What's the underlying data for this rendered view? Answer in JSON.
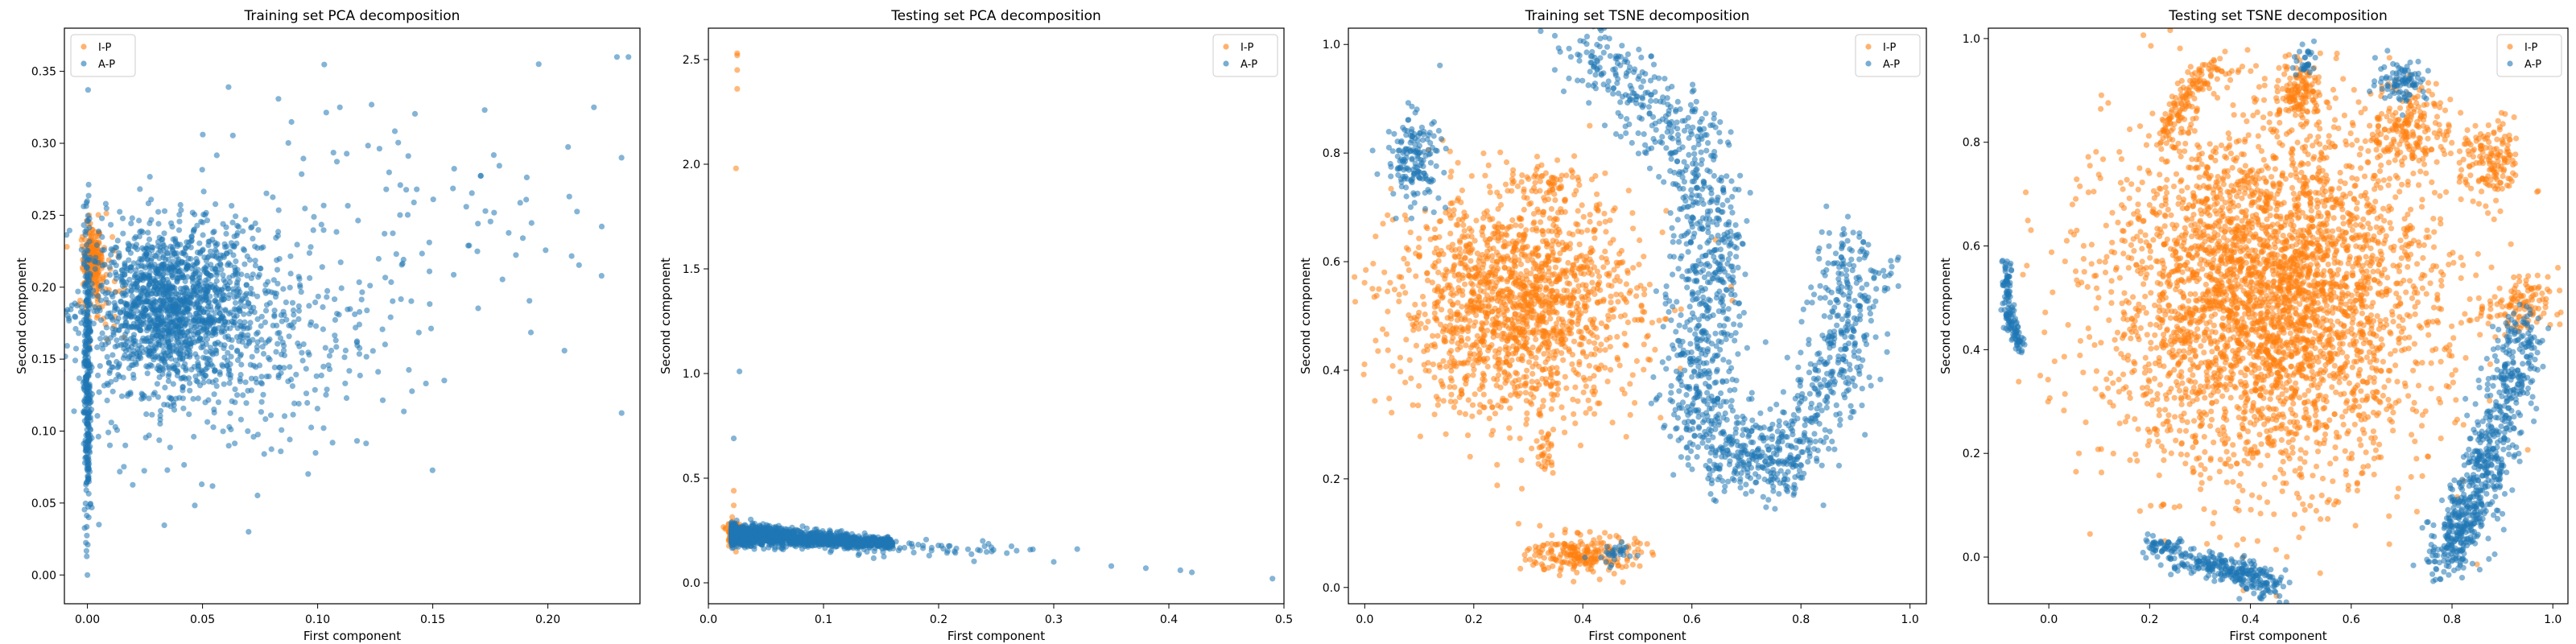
{
  "colors": {
    "ip": "#ff7f0e",
    "ap": "#1f77b4"
  },
  "chart_data": [
    {
      "type": "scatter",
      "title": "Training set PCA decomposition",
      "xlabel": "First component",
      "ylabel": "Second component",
      "xlim": [
        -0.01,
        0.24
      ],
      "ylim": [
        -0.02,
        0.38
      ],
      "xticks": [
        "0.00",
        "0.05",
        "0.10",
        "0.15",
        "0.20"
      ],
      "xtick_values": [
        0.0,
        0.05,
        0.1,
        0.15,
        0.2
      ],
      "yticks": [
        "0.00",
        "0.05",
        "0.10",
        "0.15",
        "0.20",
        "0.25",
        "0.30",
        "0.35"
      ],
      "ytick_values": [
        0.0,
        0.05,
        0.1,
        0.15,
        0.2,
        0.25,
        0.3,
        0.35
      ],
      "legend": "top-left",
      "series": [
        {
          "name": "I-P",
          "color": "#ff7f0e",
          "clusters": [
            {
              "cx": 0.002,
              "cy": 0.22,
              "sx": 0.002,
              "sy": 0.012,
              "n": 150
            },
            {
              "cx": 0.005,
              "cy": 0.205,
              "sx": 0.004,
              "sy": 0.02,
              "n": 80
            }
          ]
        },
        {
          "name": "A-P",
          "color": "#1f77b4",
          "clusters": [
            {
              "cx": 0.035,
              "cy": 0.185,
              "sx": 0.018,
              "sy": 0.028,
              "n": 1400
            },
            {
              "cx": 0.065,
              "cy": 0.17,
              "sx": 0.03,
              "sy": 0.045,
              "n": 450
            },
            {
              "cx": 0.13,
              "cy": 0.24,
              "sx": 0.045,
              "sy": 0.05,
              "n": 120
            },
            {
              "cx": 0.0,
              "cy": 0.14,
              "sx": 0.0008,
              "sy": 0.055,
              "n": 320
            }
          ],
          "points": [
            [
              0.23,
              0.36
            ],
            [
              0.235,
              0.36
            ],
            [
              0.22,
              0.325
            ],
            [
              0.232,
              0.29
            ],
            [
              0.0,
              0.0
            ],
            [
              0.005,
              0.035
            ],
            [
              0.07,
              0.03
            ],
            [
              0.196,
              0.355
            ]
          ]
        }
      ]
    },
    {
      "type": "scatter",
      "title": "Testing set PCA decomposition",
      "xlabel": "First component",
      "ylabel": "Second component",
      "xlim": [
        0.0,
        0.5
      ],
      "ylim": [
        -0.1,
        2.65
      ],
      "xticks": [
        "0.0",
        "0.1",
        "0.2",
        "0.3",
        "0.4",
        "0.5"
      ],
      "xtick_values": [
        0.0,
        0.1,
        0.2,
        0.3,
        0.4,
        0.5
      ],
      "yticks": [
        "0.0",
        "0.5",
        "1.0",
        "1.5",
        "2.0",
        "2.5"
      ],
      "ytick_values": [
        0.0,
        0.5,
        1.0,
        1.5,
        2.0,
        2.5
      ],
      "legend": "top-right",
      "series": [
        {
          "name": "I-P",
          "color": "#ff7f0e",
          "clusters": [
            {
              "cx": 0.022,
              "cy": 0.24,
              "sx": 0.003,
              "sy": 0.03,
              "n": 120
            }
          ],
          "points": [
            [
              0.025,
              2.53
            ],
            [
              0.025,
              2.52
            ],
            [
              0.025,
              2.45
            ],
            [
              0.025,
              2.36
            ],
            [
              0.024,
              1.98
            ],
            [
              0.022,
              0.44
            ],
            [
              0.022,
              0.37
            ]
          ]
        },
        {
          "name": "A-P",
          "color": "#1f77b4",
          "band": {
            "x0": 0.02,
            "x1": 0.16,
            "y0": 0.23,
            "y1": 0.19,
            "jitter": 0.025,
            "n": 1600
          },
          "clusters": [
            {
              "cx": 0.2,
              "cy": 0.165,
              "sx": 0.05,
              "sy": 0.02,
              "n": 60
            }
          ],
          "points": [
            [
              0.027,
              1.01
            ],
            [
              0.022,
              0.69
            ],
            [
              0.3,
              0.1
            ],
            [
              0.35,
              0.08
            ],
            [
              0.38,
              0.07
            ],
            [
              0.41,
              0.06
            ],
            [
              0.42,
              0.05
            ],
            [
              0.49,
              0.02
            ]
          ]
        }
      ]
    },
    {
      "type": "scatter",
      "title": "Training set TSNE decomposition",
      "xlabel": "First component",
      "ylabel": "Second component",
      "xlim": [
        -0.03,
        1.03
      ],
      "ylim": [
        -0.03,
        1.03
      ],
      "xticks": [
        "0.0",
        "0.2",
        "0.4",
        "0.6",
        "0.8",
        "1.0"
      ],
      "xtick_values": [
        0.0,
        0.2,
        0.4,
        0.6,
        0.8,
        1.0
      ],
      "yticks": [
        "0.0",
        "0.2",
        "0.4",
        "0.6",
        "0.8",
        "1.0"
      ],
      "ytick_values": [
        0.0,
        0.2,
        0.4,
        0.6,
        0.8,
        1.0
      ],
      "legend": "top-right",
      "series": [
        {
          "name": "I-P",
          "color": "#ff7f0e",
          "clusters": [
            {
              "cx": 0.28,
              "cy": 0.52,
              "sx": 0.11,
              "sy": 0.1,
              "n": 1600
            },
            {
              "cx": 0.4,
              "cy": 0.06,
              "sx": 0.05,
              "sy": 0.018,
              "n": 220
            },
            {
              "cx": 0.34,
              "cy": 0.74,
              "sx": 0.03,
              "sy": 0.02,
              "n": 60
            },
            {
              "cx": 0.33,
              "cy": 0.25,
              "sx": 0.01,
              "sy": 0.03,
              "n": 30
            }
          ]
        },
        {
          "name": "A-P",
          "color": "#1f77b4",
          "clusters": [
            {
              "cx": 0.09,
              "cy": 0.79,
              "sx": 0.025,
              "sy": 0.04,
              "n": 160
            },
            {
              "cx": 0.46,
              "cy": 0.06,
              "sx": 0.02,
              "sy": 0.012,
              "n": 30
            }
          ],
          "curves": [
            {
              "pts": [
                [
                  0.39,
                  1.0
                ],
                [
                  0.6,
                  0.82
                ],
                [
                  0.64,
                  0.62
                ],
                [
                  0.6,
                  0.4
                ],
                [
                  0.65,
                  0.25
                ],
                [
                  0.77,
                  0.22
                ],
                [
                  0.87,
                  0.42
                ],
                [
                  0.9,
                  0.63
                ]
              ],
              "jitter": 0.035,
              "n": 1500
            }
          ]
        }
      ]
    },
    {
      "type": "scatter",
      "title": "Testing set TSNE decomposition",
      "xlabel": "First component",
      "ylabel": "Second component",
      "xlim": [
        -0.12,
        1.03
      ],
      "ylim": [
        -0.09,
        1.02
      ],
      "xticks": [
        "0.0",
        "0.2",
        "0.4",
        "0.6",
        "0.8",
        "1.0"
      ],
      "xtick_values": [
        0.0,
        0.2,
        0.4,
        0.6,
        0.8,
        1.0
      ],
      "yticks": [
        "0.0",
        "0.2",
        "0.4",
        "0.6",
        "0.8",
        "1.0"
      ],
      "ytick_values": [
        0.0,
        0.2,
        0.4,
        0.6,
        0.8,
        1.0
      ],
      "legend": "top-right",
      "series": [
        {
          "name": "I-P",
          "color": "#ff7f0e",
          "clusters": [
            {
              "cx": 0.44,
              "cy": 0.5,
              "sx": 0.16,
              "sy": 0.17,
              "n": 3600
            },
            {
              "cx": 0.5,
              "cy": 0.9,
              "sx": 0.02,
              "sy": 0.03,
              "n": 120
            },
            {
              "cx": 0.72,
              "cy": 0.83,
              "sx": 0.04,
              "sy": 0.04,
              "n": 180
            },
            {
              "cx": 0.88,
              "cy": 0.76,
              "sx": 0.03,
              "sy": 0.04,
              "n": 150
            },
            {
              "cx": 0.93,
              "cy": 0.48,
              "sx": 0.03,
              "sy": 0.03,
              "n": 110
            }
          ],
          "curves": [
            {
              "pts": [
                [
                  0.22,
                  0.8
                ],
                [
                  0.28,
                  0.9
                ],
                [
                  0.33,
                  0.95
                ]
              ],
              "jitter": 0.012,
              "n": 130
            }
          ]
        },
        {
          "name": "A-P",
          "color": "#1f77b4",
          "clusters": [
            {
              "cx": 0.7,
              "cy": 0.92,
              "sx": 0.025,
              "sy": 0.02,
              "n": 90
            },
            {
              "cx": 0.51,
              "cy": 0.96,
              "sx": 0.012,
              "sy": 0.02,
              "n": 30
            }
          ],
          "curves": [
            {
              "pts": [
                [
                  -0.085,
                  0.57
                ],
                [
                  -0.08,
                  0.47
                ],
                [
                  -0.055,
                  0.4
                ]
              ],
              "jitter": 0.006,
              "n": 130
            },
            {
              "pts": [
                [
                  0.78,
                  -0.01
                ],
                [
                  0.84,
                  0.1
                ],
                [
                  0.89,
                  0.25
                ],
                [
                  0.95,
                  0.45
                ]
              ],
              "jitter": 0.025,
              "n": 700
            },
            {
              "pts": [
                [
                  0.2,
                  0.02
                ],
                [
                  0.3,
                  -0.01
                ],
                [
                  0.38,
                  -0.03
                ],
                [
                  0.45,
                  -0.06
                ]
              ],
              "jitter": 0.014,
              "n": 320
            }
          ]
        }
      ]
    }
  ]
}
